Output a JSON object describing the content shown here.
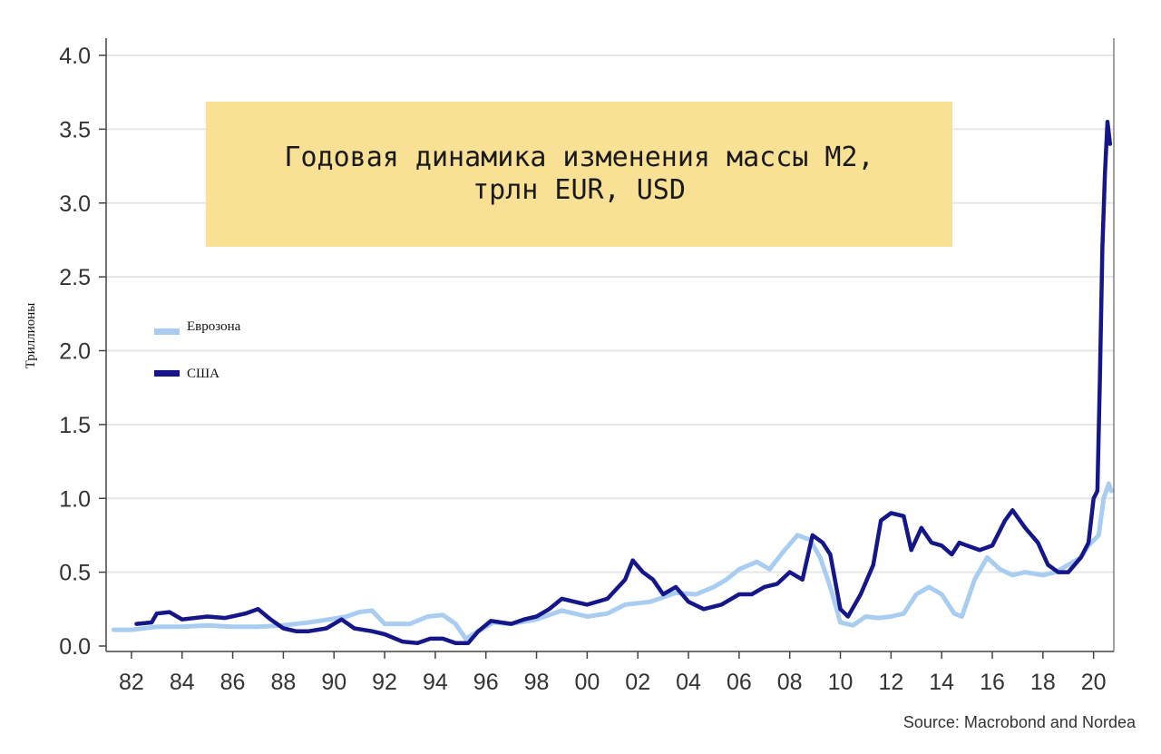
{
  "title": {
    "line1": "Годовая динамика изменения массы M2,",
    "line2": "трлн EUR, USD"
  },
  "source": "Source: Macrobond and Nordea",
  "chart_data": {
    "type": "line",
    "title": "Годовая динамика изменения массы M2, трлн EUR, USD",
    "xlabel": "",
    "ylabel": "Триллионы",
    "xlim": [
      1981,
      2020.8
    ],
    "ylim": [
      0,
      4
    ],
    "x_tick_labels": [
      "82",
      "84",
      "86",
      "88",
      "90",
      "92",
      "94",
      "96",
      "98",
      "00",
      "02",
      "04",
      "06",
      "08",
      "10",
      "12",
      "14",
      "16",
      "18",
      "20"
    ],
    "x_ticks": [
      1982,
      1984,
      1986,
      1988,
      1990,
      1992,
      1994,
      1996,
      1998,
      2000,
      2002,
      2004,
      2006,
      2008,
      2010,
      2012,
      2014,
      2016,
      2018,
      2020
    ],
    "y_ticks": [
      0.0,
      0.5,
      1.0,
      1.5,
      2.0,
      2.5,
      3.0,
      3.5,
      4.0
    ],
    "y_tick_labels": [
      "0.0",
      "0.5",
      "1.0",
      "1.5",
      "2.0",
      "2.5",
      "3.0",
      "3.5",
      "4.0"
    ],
    "grid": "horizontal",
    "legend_position": "left-middle",
    "series": [
      {
        "name": "Еврозона",
        "color": "#a8cdf0",
        "points": [
          [
            1981.3,
            0.11
          ],
          [
            1982,
            0.11
          ],
          [
            1983,
            0.13
          ],
          [
            1984,
            0.13
          ],
          [
            1985,
            0.14
          ],
          [
            1986,
            0.13
          ],
          [
            1987,
            0.13
          ],
          [
            1988,
            0.14
          ],
          [
            1989,
            0.16
          ],
          [
            1989.8,
            0.18
          ],
          [
            1990.5,
            0.2
          ],
          [
            1991,
            0.23
          ],
          [
            1991.5,
            0.24
          ],
          [
            1992,
            0.15
          ],
          [
            1993,
            0.15
          ],
          [
            1993.7,
            0.2
          ],
          [
            1994.3,
            0.21
          ],
          [
            1994.8,
            0.15
          ],
          [
            1995.2,
            0.05
          ],
          [
            1995.7,
            0.1
          ],
          [
            1996.3,
            0.16
          ],
          [
            1997,
            0.15
          ],
          [
            1998,
            0.18
          ],
          [
            1999,
            0.24
          ],
          [
            2000,
            0.2
          ],
          [
            2000.8,
            0.22
          ],
          [
            2001.5,
            0.28
          ],
          [
            2002.5,
            0.3
          ],
          [
            2003.5,
            0.36
          ],
          [
            2004.3,
            0.35
          ],
          [
            2005,
            0.4
          ],
          [
            2005.5,
            0.45
          ],
          [
            2006,
            0.52
          ],
          [
            2006.7,
            0.57
          ],
          [
            2007.2,
            0.52
          ],
          [
            2007.8,
            0.65
          ],
          [
            2008.3,
            0.75
          ],
          [
            2008.8,
            0.72
          ],
          [
            2009.2,
            0.6
          ],
          [
            2009.6,
            0.4
          ],
          [
            2010,
            0.16
          ],
          [
            2010.5,
            0.14
          ],
          [
            2011,
            0.2
          ],
          [
            2011.5,
            0.19
          ],
          [
            2012,
            0.2
          ],
          [
            2012.5,
            0.22
          ],
          [
            2013,
            0.35
          ],
          [
            2013.5,
            0.4
          ],
          [
            2014,
            0.35
          ],
          [
            2014.5,
            0.22
          ],
          [
            2014.8,
            0.2
          ],
          [
            2015.3,
            0.45
          ],
          [
            2015.8,
            0.6
          ],
          [
            2016.3,
            0.52
          ],
          [
            2016.8,
            0.48
          ],
          [
            2017.3,
            0.5
          ],
          [
            2018,
            0.48
          ],
          [
            2018.5,
            0.5
          ],
          [
            2019,
            0.55
          ],
          [
            2019.5,
            0.6
          ],
          [
            2019.8,
            0.68
          ],
          [
            2020.2,
            0.75
          ],
          [
            2020.4,
            1.0
          ],
          [
            2020.6,
            1.1
          ],
          [
            2020.7,
            1.05
          ]
        ]
      },
      {
        "name": "США",
        "color": "#14168a",
        "points": [
          [
            1982.2,
            0.15
          ],
          [
            1982.8,
            0.16
          ],
          [
            1983,
            0.22
          ],
          [
            1983.5,
            0.23
          ],
          [
            1984,
            0.18
          ],
          [
            1985,
            0.2
          ],
          [
            1985.7,
            0.19
          ],
          [
            1986.5,
            0.22
          ],
          [
            1987,
            0.25
          ],
          [
            1987.5,
            0.18
          ],
          [
            1988,
            0.12
          ],
          [
            1988.5,
            0.1
          ],
          [
            1989,
            0.1
          ],
          [
            1989.7,
            0.12
          ],
          [
            1990.3,
            0.18
          ],
          [
            1990.8,
            0.12
          ],
          [
            1991.5,
            0.1
          ],
          [
            1992,
            0.08
          ],
          [
            1992.7,
            0.03
          ],
          [
            1993.3,
            0.02
          ],
          [
            1993.8,
            0.05
          ],
          [
            1994.3,
            0.05
          ],
          [
            1994.8,
            0.02
          ],
          [
            1995.3,
            0.02
          ],
          [
            1995.7,
            0.1
          ],
          [
            1996.2,
            0.17
          ],
          [
            1997,
            0.15
          ],
          [
            1997.5,
            0.18
          ],
          [
            1998,
            0.2
          ],
          [
            1998.5,
            0.25
          ],
          [
            1999,
            0.32
          ],
          [
            1999.5,
            0.3
          ],
          [
            2000,
            0.28
          ],
          [
            2000.8,
            0.32
          ],
          [
            2001.5,
            0.45
          ],
          [
            2001.8,
            0.58
          ],
          [
            2002.2,
            0.5
          ],
          [
            2002.6,
            0.45
          ],
          [
            2003,
            0.35
          ],
          [
            2003.5,
            0.4
          ],
          [
            2004,
            0.3
          ],
          [
            2004.6,
            0.25
          ],
          [
            2005.3,
            0.28
          ],
          [
            2006,
            0.35
          ],
          [
            2006.5,
            0.35
          ],
          [
            2007,
            0.4
          ],
          [
            2007.5,
            0.42
          ],
          [
            2008,
            0.5
          ],
          [
            2008.5,
            0.45
          ],
          [
            2008.9,
            0.75
          ],
          [
            2009.3,
            0.7
          ],
          [
            2009.6,
            0.62
          ],
          [
            2010,
            0.25
          ],
          [
            2010.3,
            0.2
          ],
          [
            2010.8,
            0.35
          ],
          [
            2011.3,
            0.55
          ],
          [
            2011.6,
            0.85
          ],
          [
            2012,
            0.9
          ],
          [
            2012.5,
            0.88
          ],
          [
            2012.8,
            0.65
          ],
          [
            2013.2,
            0.8
          ],
          [
            2013.6,
            0.7
          ],
          [
            2014,
            0.68
          ],
          [
            2014.4,
            0.62
          ],
          [
            2014.7,
            0.7
          ],
          [
            2015,
            0.68
          ],
          [
            2015.5,
            0.65
          ],
          [
            2016,
            0.68
          ],
          [
            2016.5,
            0.85
          ],
          [
            2016.8,
            0.92
          ],
          [
            2017.3,
            0.8
          ],
          [
            2017.8,
            0.7
          ],
          [
            2018.2,
            0.55
          ],
          [
            2018.6,
            0.5
          ],
          [
            2019,
            0.5
          ],
          [
            2019.5,
            0.6
          ],
          [
            2019.8,
            0.7
          ],
          [
            2020,
            1.0
          ],
          [
            2020.15,
            1.05
          ],
          [
            2020.25,
            1.8
          ],
          [
            2020.35,
            2.7
          ],
          [
            2020.45,
            3.2
          ],
          [
            2020.55,
            3.55
          ],
          [
            2020.65,
            3.4
          ]
        ]
      }
    ]
  }
}
